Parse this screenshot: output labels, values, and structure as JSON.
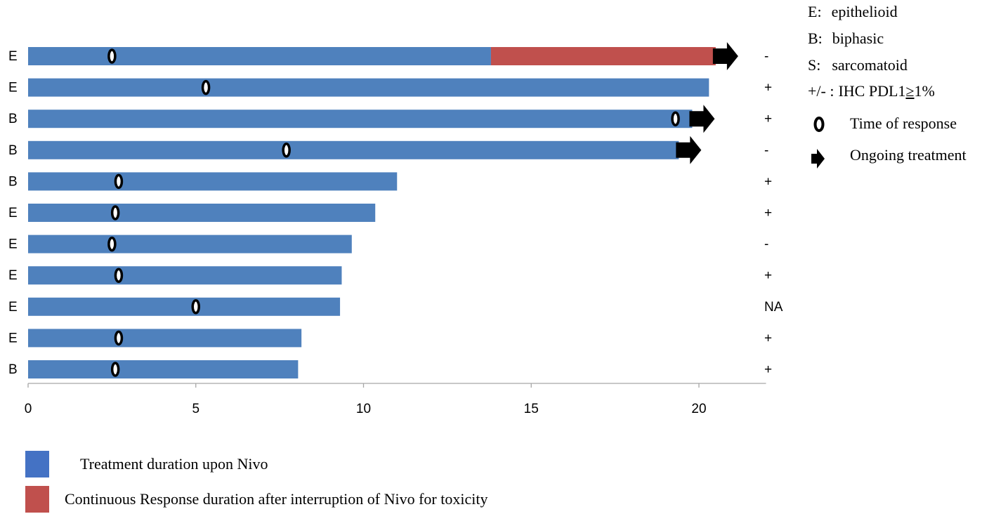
{
  "chart_data": {
    "type": "bar",
    "orientation": "horizontal",
    "stacked": true,
    "xlim": [
      0,
      22
    ],
    "x_ticks": [
      0,
      5,
      10,
      15,
      20
    ],
    "x_tick_labels": [
      "0",
      "5",
      "10",
      "15",
      "20"
    ],
    "grid": false,
    "categories": [
      "E",
      "E",
      "B",
      "B",
      "B",
      "E",
      "E",
      "E",
      "E",
      "E",
      "B"
    ],
    "right_labels": [
      "-",
      "+",
      "+",
      "-",
      "+",
      "+",
      "-",
      "+",
      "NA",
      "+",
      "+"
    ],
    "series": [
      {
        "name": "Treatment duration upon Nivo",
        "color": "#4f81bd",
        "values": [
          13.8,
          20.3,
          19.8,
          19.4,
          11.0,
          10.35,
          9.65,
          9.35,
          9.3,
          8.15,
          8.05
        ]
      },
      {
        "name": "Continuous Response duration after interruption of Nivo for toxicity",
        "color": "#c0504d",
        "values": [
          6.7,
          0,
          0,
          0,
          0,
          0,
          0,
          0,
          0,
          0,
          0
        ]
      }
    ],
    "response_times": [
      2.5,
      5.3,
      19.3,
      7.7,
      2.7,
      2.6,
      2.5,
      2.7,
      5.0,
      2.7,
      2.6
    ],
    "ongoing": [
      true,
      false,
      true,
      true,
      false,
      false,
      false,
      false,
      false,
      false,
      false
    ]
  },
  "legend_top": {
    "items": [
      {
        "key": "E:",
        "text": "epithelioid"
      },
      {
        "key": "B:",
        "text": "biphasic"
      },
      {
        "key": "S:",
        "text": "sarcomatoid"
      },
      {
        "key": "+/- :",
        "text": "IHC PDL1",
        "ge": "≥",
        "pct": "1%"
      }
    ],
    "response_label": "Time of response",
    "ongoing_label": "Ongoing treatment"
  },
  "legend_bottom": {
    "treatment_label": "Treatment duration upon Nivo",
    "toxicity_label": "Continuous Response duration after interruption of Nivo for toxicity"
  },
  "colors": {
    "treatment": "#4f81bd",
    "toxicity": "#c0504d",
    "treatment_swatch": "#4472c4",
    "axis": "#a6a6a6"
  }
}
